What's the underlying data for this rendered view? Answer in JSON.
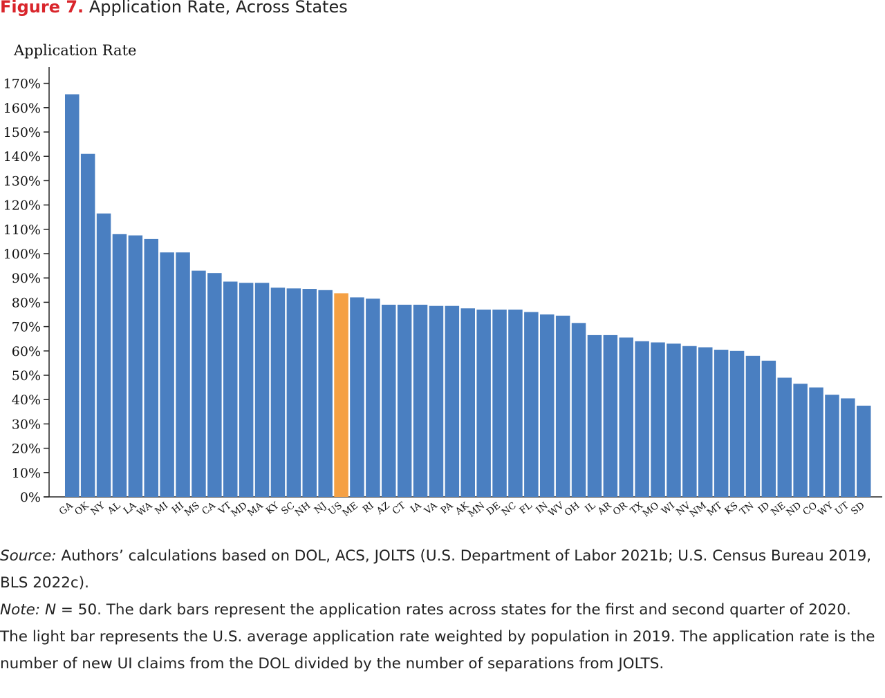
{
  "figure": {
    "label": "Figure 7.",
    "title": "Application Rate, Across States"
  },
  "notes": {
    "source_lead": "Source:",
    "source_text": "Authors’ calculations based on DOL, ACS, JOLTS (U.S. Department of Labor 2021b; U.S. Census Bureau 2019, BLS 2022c).",
    "note_lead": "Note:",
    "note_n": "N",
    "note_text": " = 50. The dark bars represent the application rates across states for the first and second quarter of 2020. The light bar represents the U.S. average application rate weighted by population in 2019. The application rate is the number of new UI claims from the DOL divided by the number of separations from JOLTS."
  },
  "colors": {
    "state_bar": "#4a7fc1",
    "us_bar": "#f5a043",
    "axis": "#222222"
  },
  "chart_data": {
    "type": "bar",
    "ylabel": "Application Rate",
    "xlabel": "",
    "ylim": [
      0,
      175
    ],
    "y_ticks": [
      "0%",
      "10%",
      "20%",
      "30%",
      "40%",
      "50%",
      "60%",
      "70%",
      "80%",
      "90%",
      "100%",
      "110%",
      "120%",
      "130%",
      "140%",
      "150%",
      "160%",
      "170%"
    ],
    "highlight_category": "US",
    "categories": [
      "GA",
      "OK",
      "NY",
      "AL",
      "LA",
      "WA",
      "MI",
      "HI",
      "MS",
      "CA",
      "VT",
      "MD",
      "MA",
      "KY",
      "SC",
      "NH",
      "NJ",
      "US",
      "ME",
      "RI",
      "AZ",
      "CT",
      "IA",
      "VA",
      "PA",
      "AK",
      "MN",
      "DE",
      "NC",
      "FL",
      "IN",
      "WV",
      "OH",
      "IL",
      "AR",
      "OR",
      "TX",
      "MO",
      "WI",
      "NV",
      "NM",
      "MT",
      "KS",
      "TN",
      "ID",
      "NE",
      "ND",
      "CO",
      "WY",
      "UT",
      "SD"
    ],
    "values": [
      165.5,
      141,
      116.5,
      108,
      107.5,
      106,
      100.5,
      100.5,
      93,
      92,
      88.5,
      88,
      88,
      86,
      85.7,
      85.5,
      85,
      83.7,
      82,
      81.5,
      79,
      79,
      79,
      78.5,
      78.5,
      77.5,
      77,
      77,
      77,
      76,
      75,
      74.5,
      71.5,
      66.5,
      66.5,
      65.5,
      64,
      63.5,
      63,
      62,
      61.5,
      60.5,
      60,
      58,
      56,
      49,
      46.5,
      45,
      42,
      40.5,
      37.5
    ]
  }
}
